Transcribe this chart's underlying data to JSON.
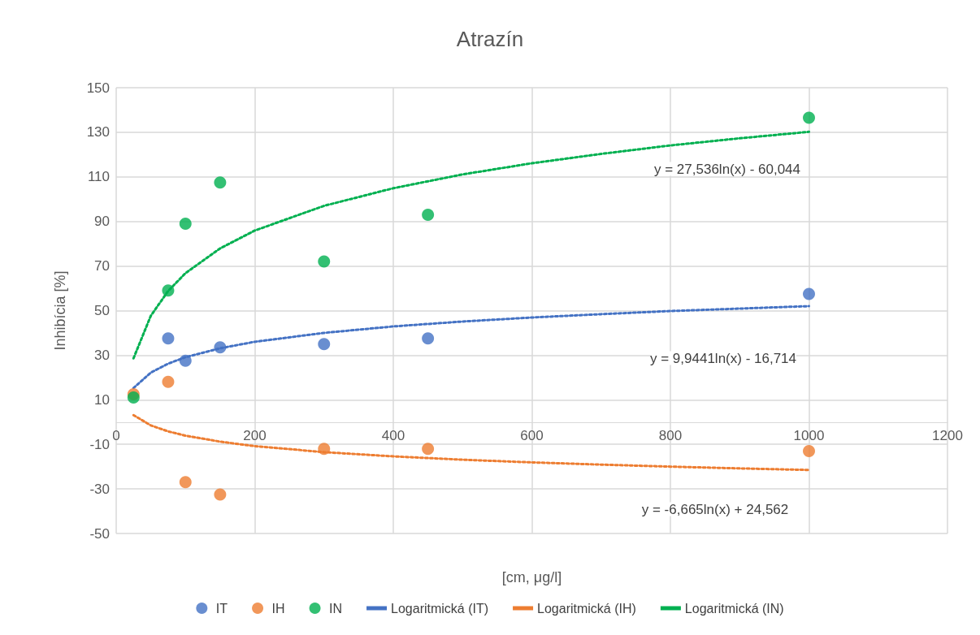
{
  "chart_data": {
    "type": "scatter",
    "title": "Atrazín",
    "xlabel": "[cm, μg/l]",
    "ylabel": "Inhibícia [%]",
    "xlim": [
      0,
      1200
    ],
    "xticks": [
      0,
      200,
      400,
      600,
      800,
      1000,
      1200
    ],
    "ylim": [
      -50,
      150
    ],
    "yticks": [
      -50,
      -30,
      -10,
      10,
      30,
      50,
      70,
      90,
      110,
      130,
      150
    ],
    "grid": true,
    "legend": "bottom",
    "annotations": [
      "y = 27,536ln(x) - 60,044",
      "y = 9,9441ln(x) - 16,714",
      "y = -6,665ln(x) + 24,562"
    ],
    "series": [
      {
        "name": "IT",
        "marker": "circle",
        "color": "#4472c4",
        "x": [
          75,
          100,
          150,
          300,
          450,
          1000
        ],
        "values": [
          37.5,
          27.5,
          33.5,
          35,
          37.5,
          57.5
        ]
      },
      {
        "name": "IH",
        "marker": "circle",
        "color": "#ed7d31",
        "x": [
          25,
          75,
          100,
          150,
          300,
          450,
          1000
        ],
        "values": [
          12.5,
          18,
          -27,
          -32.5,
          -12,
          -12,
          -13
        ]
      },
      {
        "name": "IN",
        "marker": "circle",
        "color": "#00b050",
        "x": [
          25,
          75,
          100,
          150,
          300,
          450,
          1000
        ],
        "values": [
          11,
          59,
          89,
          107.5,
          72,
          93,
          136.5
        ]
      },
      {
        "name": "Logaritmická (IT)",
        "type": "line",
        "marker": "none",
        "line_style": "dotted",
        "color": "#4472c4",
        "x": [
          25,
          50,
          75,
          100,
          150,
          200,
          300,
          400,
          500,
          600,
          700,
          800,
          900,
          1000
        ],
        "values": [
          15.3,
          22.2,
          26.2,
          29.1,
          33.1,
          36.0,
          40.0,
          42.9,
          45.1,
          46.9,
          48.4,
          49.8,
          50.9,
          52.0
        ]
      },
      {
        "name": "Logaritmická (IH)",
        "type": "line",
        "marker": "none",
        "line_style": "dotted",
        "color": "#ed7d31",
        "x": [
          25,
          50,
          75,
          100,
          150,
          200,
          300,
          400,
          500,
          600,
          700,
          800,
          900,
          1000
        ],
        "values": [
          3.1,
          -1.5,
          -4.2,
          -6.1,
          -8.8,
          -10.8,
          -13.5,
          -15.4,
          -16.9,
          -18.1,
          -19.1,
          -20.0,
          -20.8,
          -21.5
        ]
      },
      {
        "name": "Logaritmická (IN)",
        "type": "line",
        "marker": "none",
        "line_style": "dotted",
        "color": "#00b050",
        "x": [
          25,
          50,
          75,
          100,
          150,
          200,
          300,
          400,
          500,
          600,
          700,
          800,
          900,
          1000
        ],
        "values": [
          28.6,
          47.7,
          58.8,
          66.8,
          77.9,
          85.9,
          97.0,
          104.9,
          111.1,
          116.1,
          120.3,
          124.1,
          127.3,
          130.2
        ]
      }
    ]
  }
}
